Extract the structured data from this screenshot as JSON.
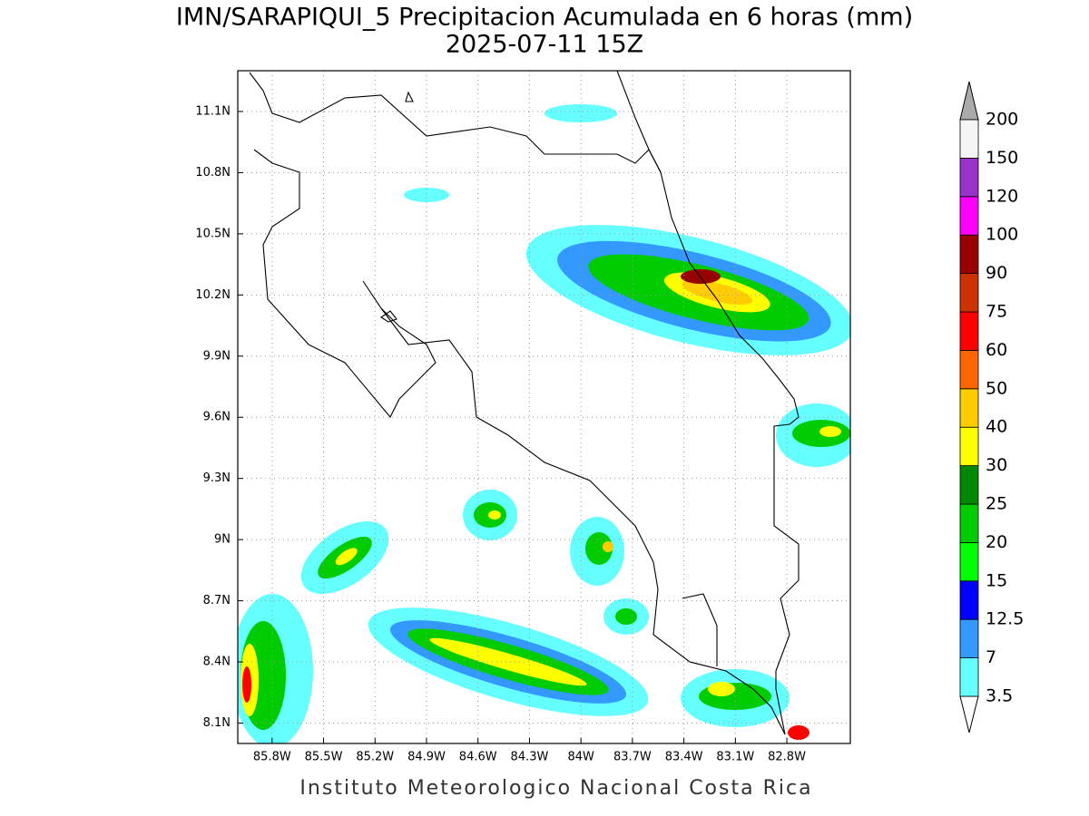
{
  "title": "IMN/SARAPIQUI_5 Precipitacion Acumulada en 6 horas (mm)",
  "subtitle": "2025-07-11 15Z",
  "footer": "Instituto Meteorologico Nacional Costa Rica",
  "map": {
    "xlim": [
      -86.0,
      -82.43
    ],
    "ylim": [
      8.0,
      11.3
    ],
    "grid": true,
    "xticks": [
      {
        "value": -85.8,
        "label": "85.8W"
      },
      {
        "value": -85.5,
        "label": "85.5W"
      },
      {
        "value": -85.2,
        "label": "85.2W"
      },
      {
        "value": -84.9,
        "label": "84.9W"
      },
      {
        "value": -84.6,
        "label": "84.6W"
      },
      {
        "value": -84.3,
        "label": "84.3W"
      },
      {
        "value": -84.0,
        "label": "84W"
      },
      {
        "value": -83.7,
        "label": "83.7W"
      },
      {
        "value": -83.4,
        "label": "83.4W"
      },
      {
        "value": -83.1,
        "label": "83.1W"
      },
      {
        "value": -82.8,
        "label": "82.8W"
      }
    ],
    "yticks": [
      {
        "value": 8.1,
        "label": "8.1N"
      },
      {
        "value": 8.4,
        "label": "8.4N"
      },
      {
        "value": 8.7,
        "label": "8.7N"
      },
      {
        "value": 9.0,
        "label": "9N"
      },
      {
        "value": 9.3,
        "label": "9.3N"
      },
      {
        "value": 9.6,
        "label": "9.6N"
      },
      {
        "value": 9.9,
        "label": "9.9N"
      },
      {
        "value": 10.2,
        "label": "10.2N"
      },
      {
        "value": 10.5,
        "label": "10.5N"
      },
      {
        "value": 10.8,
        "label": "10.8N"
      },
      {
        "value": 11.1,
        "label": "11.1N"
      }
    ]
  },
  "colorbar": {
    "levels": [
      3.5,
      7,
      12.5,
      15,
      20,
      25,
      30,
      40,
      50,
      60,
      75,
      90,
      100,
      120,
      150,
      200
    ],
    "colors": [
      "#66ffff",
      "#3399ff",
      "#0000ff",
      "#00ff00",
      "#00cc00",
      "#008800",
      "#ffff00",
      "#ffcc00",
      "#ff6600",
      "#ff0000",
      "#cc3300",
      "#990000",
      "#ff00ff",
      "#9933cc",
      "#f5f5f5"
    ],
    "under_color": "#ffffff",
    "over_color": "#aaaaaa"
  }
}
